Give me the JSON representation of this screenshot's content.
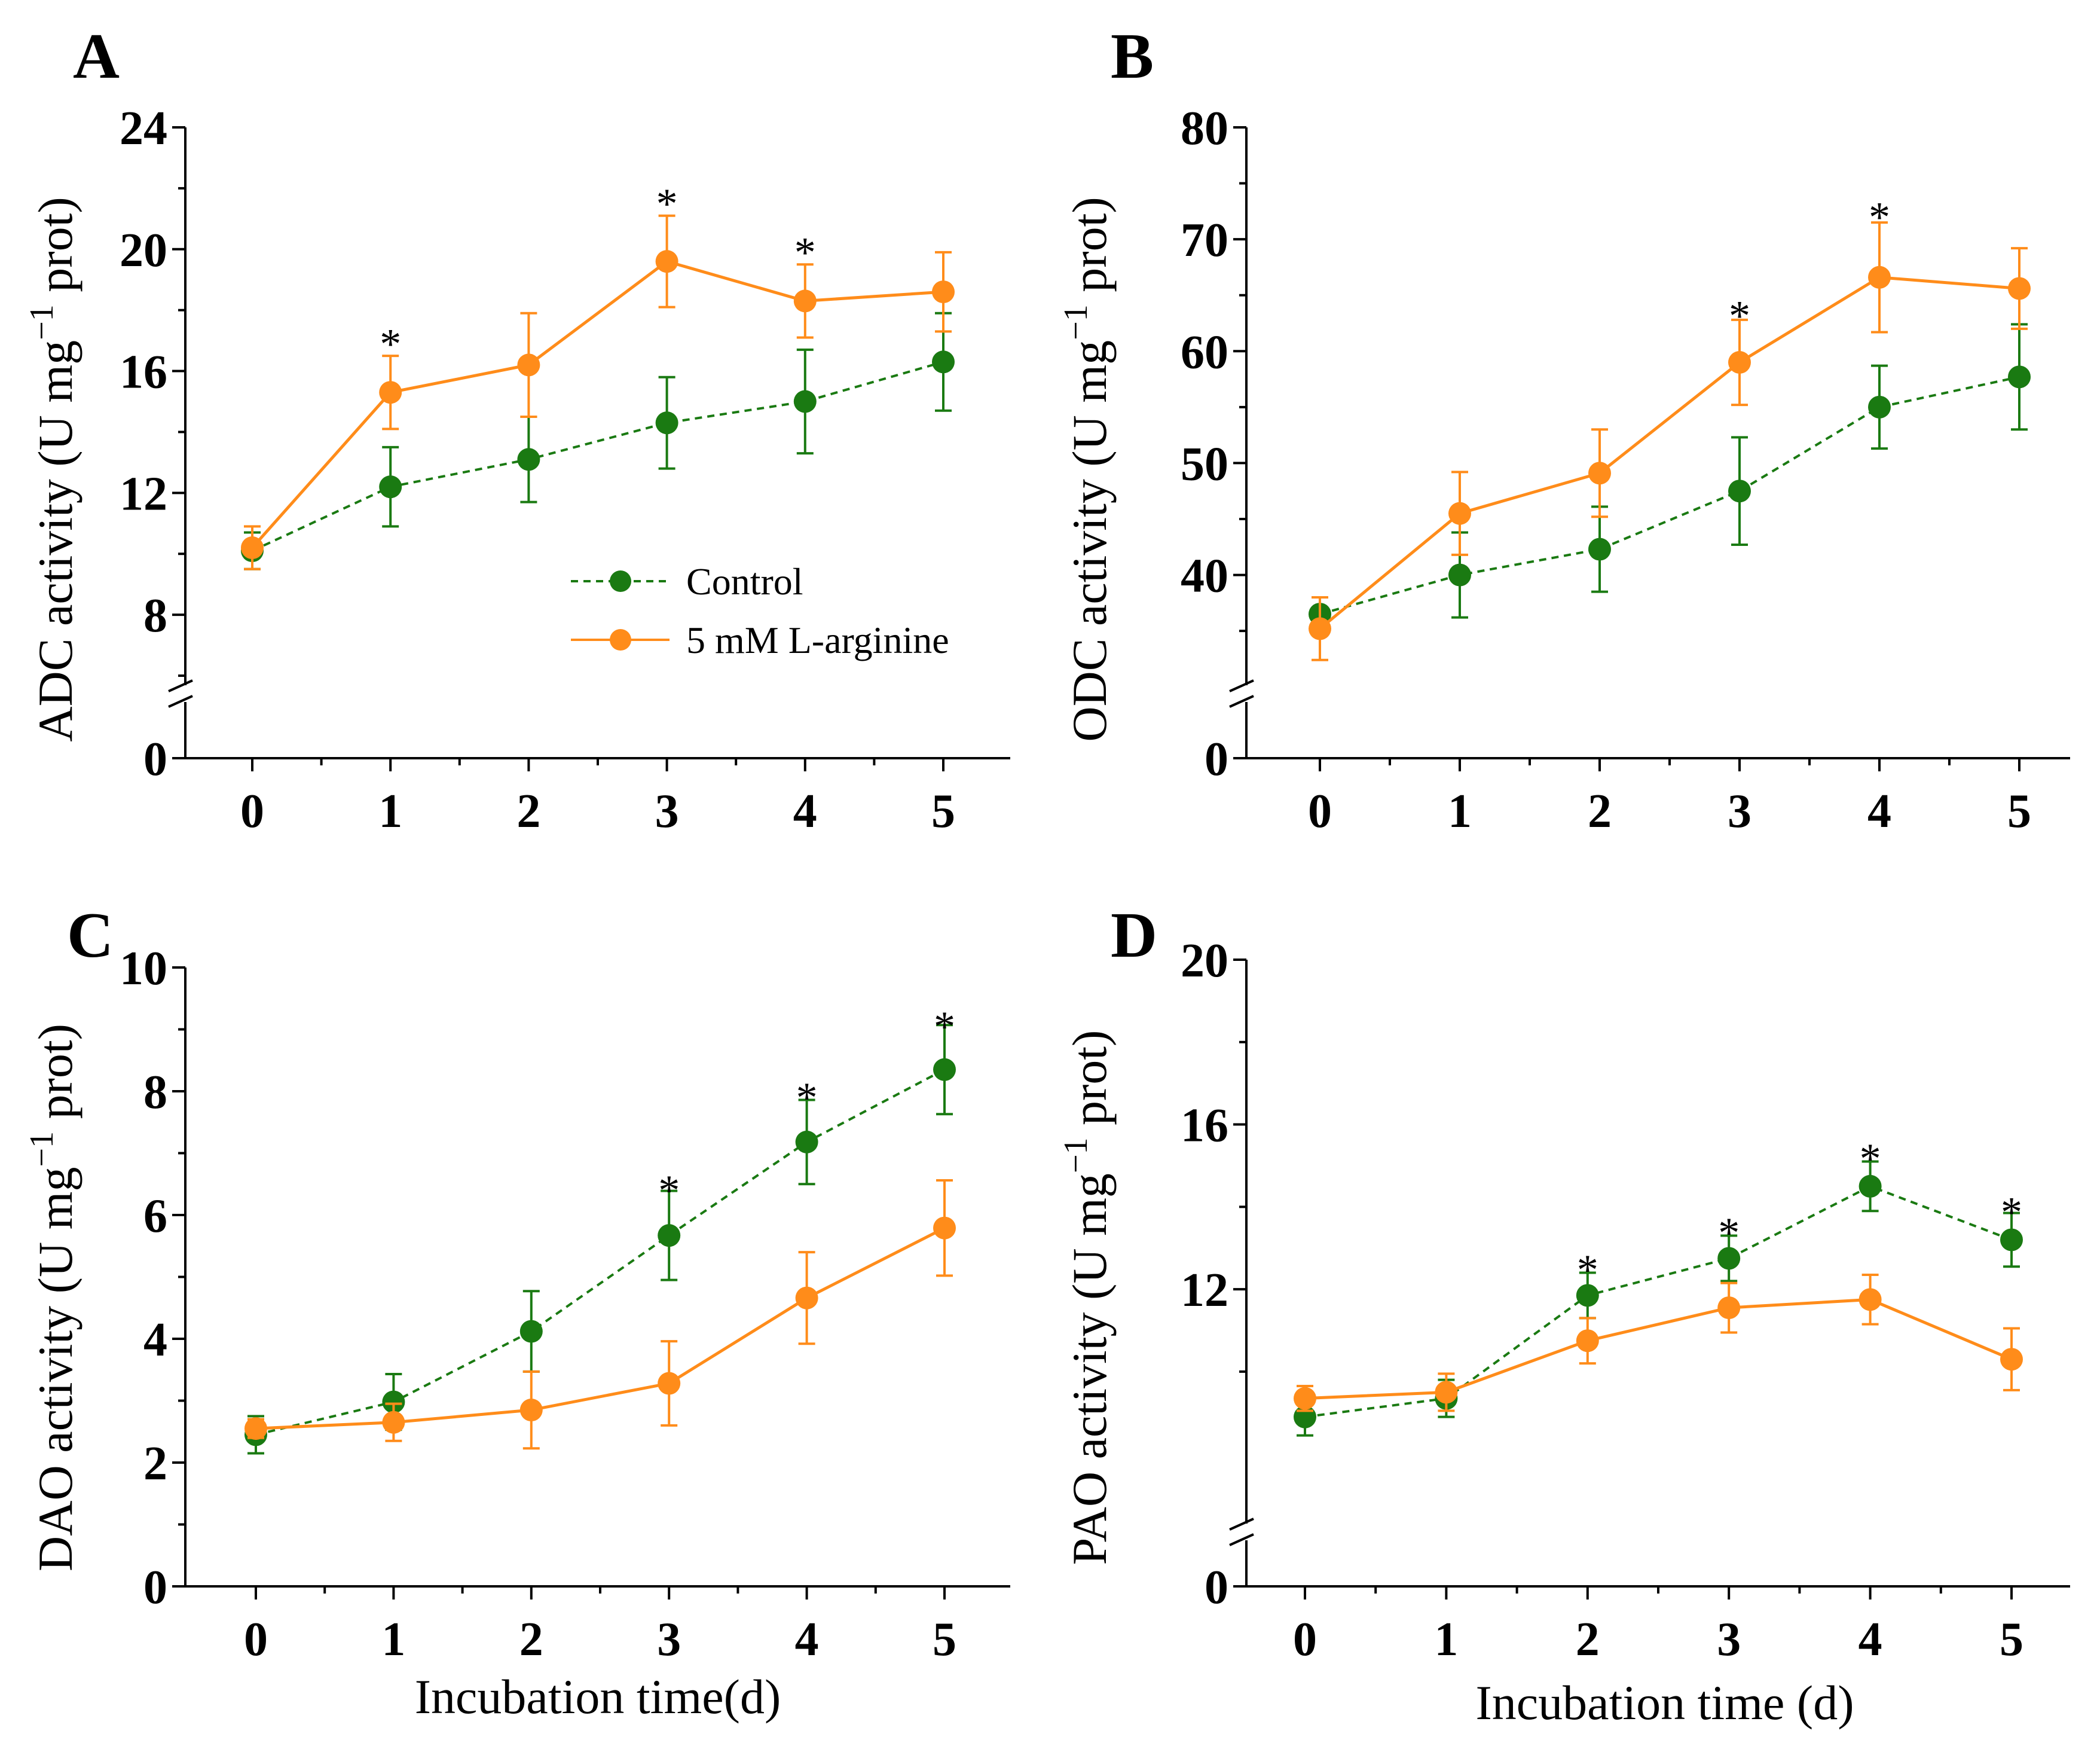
{
  "colors": {
    "control": "#1a7a12",
    "treatment": "#ff8c1a"
  },
  "legend": {
    "control_label": "Control",
    "treatment_label": "5 mM L-arginine"
  },
  "chart_data": [
    {
      "panel": "A",
      "type": "line",
      "x": [
        0,
        1,
        2,
        3,
        4,
        5
      ],
      "xlabel": "",
      "ylabel": "ADC activity (U mg",
      "ylabel_sup": "−1",
      "ylabel_end": " prot)",
      "ylim": [
        6,
        24
      ],
      "yticks": [
        8,
        12,
        16,
        20,
        24
      ],
      "axis_break": true,
      "zero_label": "0",
      "legend": true,
      "series": [
        {
          "name": "Control",
          "values": [
            10.1,
            12.2,
            13.1,
            14.3,
            15.0,
            16.3
          ],
          "errors": [
            0.6,
            1.3,
            1.4,
            1.5,
            1.7,
            1.6
          ]
        },
        {
          "name": "5 mM L-arginine",
          "values": [
            10.2,
            15.3,
            16.2,
            19.6,
            18.3,
            18.6
          ],
          "errors": [
            0.7,
            1.2,
            1.7,
            1.5,
            1.2,
            1.3
          ]
        }
      ],
      "significance": [
        {
          "x": 1,
          "y": 17.2,
          "label": "*"
        },
        {
          "x": 3,
          "y": 21.8,
          "label": "*"
        },
        {
          "x": 4,
          "y": 20.2,
          "label": "*"
        }
      ]
    },
    {
      "panel": "B",
      "type": "line",
      "x": [
        0,
        1,
        2,
        3,
        4,
        5
      ],
      "xlabel": "",
      "ylabel": "ODC activity (U mg",
      "ylabel_sup": "−1",
      "ylabel_end": " prot)",
      "ylim": [
        31,
        80
      ],
      "yticks": [
        40,
        50,
        60,
        70,
        80
      ],
      "axis_break": true,
      "zero_label": "0",
      "legend": false,
      "series": [
        {
          "name": "Control",
          "values": [
            36.5,
            40.0,
            42.3,
            47.5,
            55.0,
            57.7
          ],
          "errors": [
            1.5,
            3.8,
            3.8,
            4.8,
            3.7,
            4.7
          ]
        },
        {
          "name": "5 mM L-arginine",
          "values": [
            35.2,
            45.5,
            49.1,
            59.0,
            66.6,
            65.6
          ],
          "errors": [
            2.8,
            3.7,
            3.9,
            3.8,
            4.9,
            3.6
          ]
        }
      ],
      "significance": [
        {
          "x": 3,
          "y": 64.0,
          "label": "*"
        },
        {
          "x": 4,
          "y": 72.8,
          "label": "*"
        }
      ]
    },
    {
      "panel": "C",
      "type": "line",
      "x": [
        0,
        1,
        2,
        3,
        4,
        5
      ],
      "xlabel": "Incubation time(d)",
      "ylabel": "DAO activity (U mg",
      "ylabel_sup": "−1",
      "ylabel_end": " prot)",
      "ylim": [
        0,
        10
      ],
      "yticks": [
        0,
        2,
        4,
        6,
        8,
        10
      ],
      "axis_break": false,
      "legend": false,
      "series": [
        {
          "name": "Control",
          "values": [
            2.45,
            2.98,
            4.12,
            5.67,
            7.18,
            8.35
          ],
          "errors": [
            0.3,
            0.45,
            0.65,
            0.72,
            0.68,
            0.72
          ]
        },
        {
          "name": "5 mM L-arginine",
          "values": [
            2.55,
            2.65,
            2.85,
            3.28,
            4.66,
            5.79
          ],
          "errors": [
            0.15,
            0.3,
            0.62,
            0.68,
            0.74,
            0.77
          ]
        }
      ],
      "significance": [
        {
          "x": 3,
          "y": 6.55,
          "label": "*"
        },
        {
          "x": 4,
          "y": 8.05,
          "label": "*"
        },
        {
          "x": 5,
          "y": 9.2,
          "label": "*"
        }
      ]
    },
    {
      "panel": "D",
      "type": "line",
      "x": [
        0,
        1,
        2,
        3,
        4,
        5
      ],
      "xlabel": "Incubation time (d)",
      "ylabel": "PAO activity (U mg",
      "ylabel_sup": "−1",
      "ylabel_end": " prot)",
      "ylim": [
        6.5,
        20
      ],
      "yticks": [
        12,
        16,
        20
      ],
      "axis_break": true,
      "zero_label": "0",
      "legend": false,
      "series": [
        {
          "name": "Control",
          "values": [
            8.9,
            9.35,
            11.85,
            12.75,
            14.5,
            13.2
          ],
          "errors": [
            0.45,
            0.45,
            0.55,
            0.55,
            0.6,
            0.65
          ]
        },
        {
          "name": "5 mM L-arginine",
          "values": [
            9.35,
            9.5,
            10.75,
            11.55,
            11.75,
            10.3
          ],
          "errors": [
            0.3,
            0.45,
            0.55,
            0.6,
            0.6,
            0.75
          ]
        }
      ],
      "significance": [
        {
          "x": 2,
          "y": 12.7,
          "label": "*"
        },
        {
          "x": 3,
          "y": 13.6,
          "label": "*"
        },
        {
          "x": 4,
          "y": 15.4,
          "label": "*"
        },
        {
          "x": 5,
          "y": 14.1,
          "label": "*"
        }
      ]
    }
  ]
}
